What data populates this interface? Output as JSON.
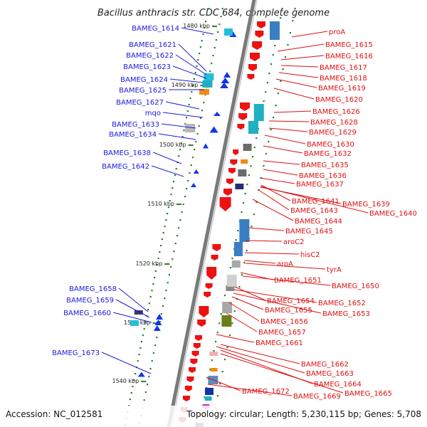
{
  "title": "Bacillus anthracis str. CDC 684, complete genome",
  "footer": {
    "accession": "Accession: NC_012581",
    "topology": "Topology: circular; Length: 5,230,115 bp; Genes: 5,708"
  },
  "colors": {
    "left_label": "#1a1adb",
    "right_label": "#dd1111",
    "axis": "#7a7a7a",
    "tick": "#2e7d2e",
    "forward_gene": "#1133ee",
    "reverse_gene": "#ee1111"
  },
  "scale_labels": [
    "1480 kbp",
    "1490 kbp",
    "1500 kbp",
    "1510 kbp",
    "1520 kbp",
    "1530 kbp",
    "1540 kbp"
  ],
  "left_genes": [
    "BAMEG_1614",
    "BAMEG_1621",
    "BAMEG_1622",
    "BAMEG_1623",
    "BAMEG_1624",
    "BAMEG_1625",
    "BAMEG_1627",
    "mqo",
    "BAMEG_1633",
    "BAMEG_1634",
    "BAMEG_1638",
    "BAMEG_1642",
    "BAMEG_1658",
    "BAMEG_1659",
    "BAMEG_1660",
    "BAMEG_1673"
  ],
  "right_genes": [
    "proA",
    "BAMEG_1615",
    "BAMEG_1616",
    "BAMEG_1617",
    "BAMEG_1618",
    "BAMEG_1619",
    "BAMEG_1620",
    "BAMEG_1626",
    "BAMEG_1628",
    "BAMEG_1629",
    "BAMEG_1630",
    "BAMEG_1632",
    "BAMEG_1635",
    "BAMEG_1636",
    "BAMEG_1637",
    "BAMEG_1641",
    "BAMEG_1639",
    "BAMEG_1643",
    "BAMEG_1640",
    "BAMEG_1644",
    "BAMEG_1645",
    "aroC2",
    "hisC2",
    "aroA",
    "tyrA",
    "BAMEG_1651",
    "BAMEG_1650",
    "BAMEG_1654",
    "BAMEG_1652",
    "BAMEG_1655",
    "BAMEG_1653",
    "BAMEG_1656",
    "BAMEG_1657",
    "BAMEG_1661",
    "BAMEG_1662",
    "BAMEG_1663",
    "BAMEG_1664",
    "BAMEG_1665",
    "BAMEG_1672",
    "BAMEG_1669"
  ]
}
